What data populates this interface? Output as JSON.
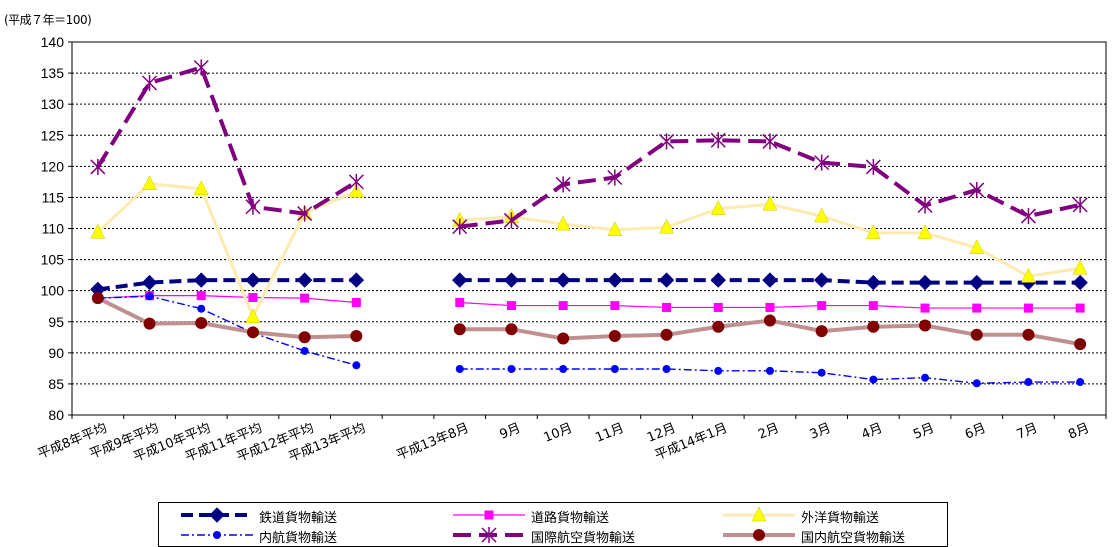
{
  "unit_label": "(平成７年＝100)",
  "chart_data": {
    "type": "line",
    "ylim": [
      80,
      140
    ],
    "yticks": [
      80,
      85,
      90,
      95,
      100,
      105,
      110,
      115,
      120,
      125,
      130,
      135,
      140
    ],
    "grid": true,
    "legend_position": "bottom",
    "categories": [
      "平成8年平均",
      "平成9年平均",
      "平成10年平均",
      "平成11年平均",
      "平成12年平均",
      "平成13年平均",
      "",
      "平成13年8月",
      "9月",
      "10月",
      "11月",
      "12月",
      "平成14年1月",
      "2月",
      "3月",
      "4月",
      "5月",
      "6月",
      "7月",
      "8月"
    ],
    "series": [
      {
        "name": "鉄道貨物輸送",
        "color": "#000080",
        "dash": "12,6",
        "width": 4,
        "marker": "diamond",
        "values": [
          100.2,
          101.3,
          101.7,
          101.7,
          101.7,
          101.7,
          null,
          101.7,
          101.7,
          101.7,
          101.7,
          101.7,
          101.7,
          101.7,
          101.7,
          101.3,
          101.3,
          101.3,
          101.3,
          101.3
        ]
      },
      {
        "name": "道路貨物輸送",
        "color": "#ff00ff",
        "dash": "",
        "width": 1.2,
        "marker": "square",
        "values": [
          98.8,
          99.2,
          99.2,
          98.9,
          98.8,
          98.1,
          null,
          98.1,
          97.6,
          97.6,
          97.6,
          97.3,
          97.3,
          97.3,
          97.6,
          97.6,
          97.2,
          97.2,
          97.2,
          97.2
        ]
      },
      {
        "name": "外洋貨物輸送",
        "color": "#ffeab0",
        "dash": "",
        "width": 3,
        "marker": "triangle",
        "markerColor": "#ffff00",
        "values": [
          109.4,
          117.2,
          116.4,
          95.8,
          112.5,
          116.0,
          null,
          111.3,
          111.9,
          110.7,
          109.8,
          110.2,
          113.2,
          113.9,
          112.0,
          109.3,
          109.3,
          106.9,
          102.3,
          103.6
        ]
      },
      {
        "name": "内航貨物輸送",
        "color": "#0000ff",
        "dash": "8,3,2,3",
        "width": 1.4,
        "marker": "circle-small",
        "values": [
          98.8,
          99.1,
          97.1,
          93.2,
          90.3,
          88.0,
          null,
          87.4,
          87.4,
          87.4,
          87.4,
          87.4,
          87.1,
          87.1,
          86.8,
          85.7,
          86.0,
          85.1,
          85.3,
          85.3
        ]
      },
      {
        "name": "国際航空貨物輸送",
        "color": "#800080",
        "dash": "18,8",
        "width": 4,
        "marker": "asterisk",
        "values": [
          119.9,
          133.4,
          135.9,
          113.5,
          112.4,
          117.5,
          null,
          110.3,
          111.3,
          117.1,
          118.2,
          124.0,
          124.2,
          124.0,
          120.6,
          119.9,
          113.7,
          116.2,
          112.0,
          113.8
        ]
      },
      {
        "name": "国内航空貨物輸送",
        "color": "#c09090",
        "dash": "",
        "width": 4,
        "marker": "circle-big",
        "markerColor": "#800000",
        "values": [
          98.8,
          94.7,
          94.8,
          93.3,
          92.5,
          92.7,
          null,
          93.8,
          93.8,
          92.3,
          92.7,
          92.9,
          94.2,
          95.2,
          93.5,
          94.2,
          94.4,
          92.9,
          92.9,
          91.4
        ]
      }
    ]
  }
}
